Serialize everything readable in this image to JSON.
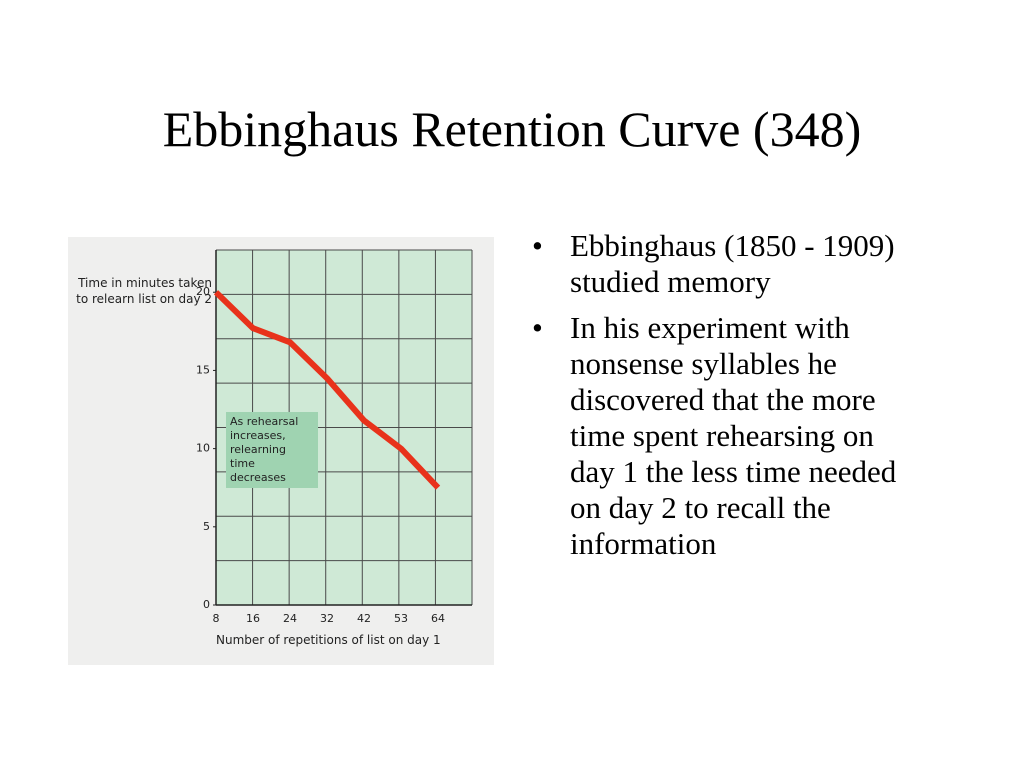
{
  "title": "Ebbinghaus Retention Curve (348)",
  "bullets": [
    "Ebbinghaus (1850 - 1909) studied memory",
    "In his experiment with nonsense syllables he discovered that the more time spent rehearsing on day 1 the less time needed on day 2 to recall the information"
  ],
  "chart_data": {
    "type": "line",
    "y_label": "Time in minutes taken to relearn list on day 2",
    "x_label": "Number of repetitions of list on day 1",
    "annotation": "As rehearsal increases, relearning time decreases",
    "categories": [
      "8",
      "16",
      "24",
      "32",
      "42",
      "53",
      "64"
    ],
    "values": [
      20,
      17.7,
      16.8,
      14.5,
      11.8,
      10,
      7.5
    ],
    "color": "#e8321b",
    "ylim": [
      0,
      22.7
    ],
    "yticks": [
      0,
      5,
      10,
      15,
      20
    ]
  }
}
